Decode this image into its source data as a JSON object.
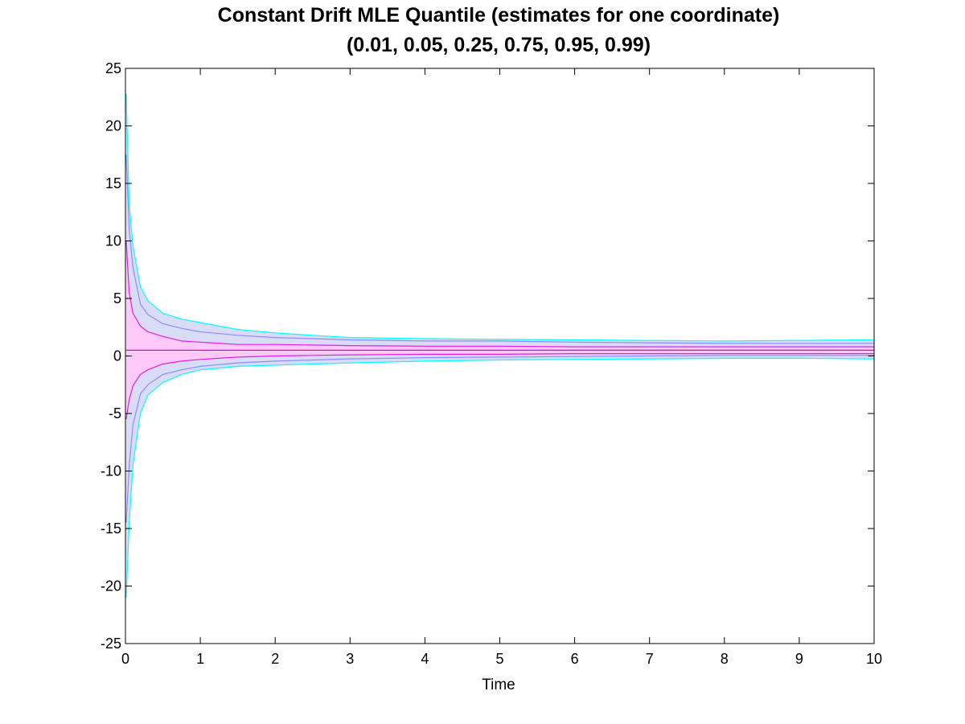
{
  "chart_data": {
    "type": "area",
    "title": "Constant Drift MLE Quantile (estimates for one coordinate)",
    "subtitle": "(0.01, 0.05, 0.25, 0.75, 0.95, 0.99)",
    "xlabel": "Time",
    "ylabel": "",
    "xlim": [
      0,
      10
    ],
    "ylim": [
      -25,
      25
    ],
    "xticks": [
      "0",
      "1",
      "2",
      "3",
      "4",
      "5",
      "6",
      "7",
      "8",
      "9",
      "10"
    ],
    "yticks": [
      "25",
      "20",
      "15",
      "10",
      "5",
      "0",
      "-5",
      "-10",
      "-15",
      "-20",
      "-25"
    ],
    "grid": false,
    "legend": "none",
    "x": [
      0.01,
      0.05,
      0.1,
      0.2,
      0.3,
      0.5,
      0.75,
      1,
      1.5,
      2,
      2.5,
      3,
      4,
      5,
      6,
      7,
      8,
      9,
      10
    ],
    "series": [
      {
        "values": [
          22.8,
          13.2,
          9.6,
          6.0,
          4.8,
          3.7,
          3.2,
          2.9,
          2.3,
          2.0,
          1.8,
          1.6,
          1.5,
          1.45,
          1.4,
          1.35,
          1.3,
          1.35,
          1.4
        ]
      },
      {
        "values": [
          17.5,
          11.0,
          7.7,
          4.5,
          3.6,
          2.8,
          2.4,
          2.1,
          1.8,
          1.6,
          1.5,
          1.4,
          1.3,
          1.3,
          1.2,
          1.15,
          1.1,
          1.1,
          1.1
        ]
      },
      {
        "values": [
          10.0,
          5.5,
          3.7,
          2.6,
          2.1,
          1.7,
          1.3,
          1.2,
          1.0,
          1.0,
          0.95,
          0.9,
          0.85,
          0.85,
          0.8,
          0.8,
          0.8,
          0.8,
          0.8
        ]
      },
      {
        "values": [
          0.5,
          0.5,
          0.5,
          0.5,
          0.5,
          0.5,
          0.5,
          0.5,
          0.5,
          0.5,
          0.5,
          0.5,
          0.5,
          0.5,
          0.5,
          0.5,
          0.5,
          0.5,
          0.5
        ]
      },
      {
        "values": [
          -5.5,
          -3.8,
          -2.6,
          -1.6,
          -1.2,
          -0.7,
          -0.45,
          -0.3,
          -0.1,
          0.0,
          0.05,
          0.1,
          0.15,
          0.15,
          0.2,
          0.2,
          0.2,
          0.2,
          0.2
        ]
      },
      {
        "values": [
          -14.5,
          -9.5,
          -6.0,
          -3.3,
          -2.5,
          -1.6,
          -1.2,
          -0.9,
          -0.6,
          -0.45,
          -0.35,
          -0.25,
          -0.15,
          -0.1,
          -0.05,
          0.0,
          0.05,
          0.05,
          0.05
        ]
      },
      {
        "values": [
          -21.0,
          -14.5,
          -9.5,
          -5.0,
          -3.4,
          -2.3,
          -1.6,
          -1.2,
          -0.9,
          -0.8,
          -0.7,
          -0.6,
          -0.45,
          -0.35,
          -0.3,
          -0.25,
          -0.2,
          -0.2,
          -0.25
        ]
      }
    ],
    "colors": {
      "outer_band": "#d8dcf7",
      "inner_band": "#fcc9f8",
      "outer_line": "#00ffff",
      "mid_line": "#8c8cff",
      "inner_line": "#e020e0",
      "median_line": "#c000c0"
    }
  }
}
